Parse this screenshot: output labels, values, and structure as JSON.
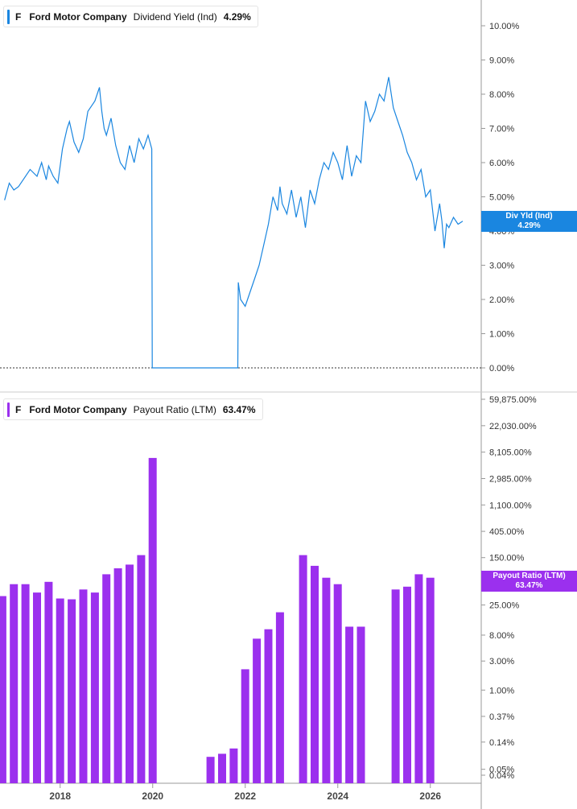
{
  "panels": {
    "top": {
      "ticker": "F",
      "company": "Ford Motor Company",
      "metric": "Dividend Yield (Ind)",
      "value": "4.29%",
      "flag_label": "Div Yld (Ind)",
      "flag_value": "4.29%",
      "color": "#1a86e0"
    },
    "bottom": {
      "ticker": "F",
      "company": "Ford Motor Company",
      "metric": "Payout Ratio (LTM)",
      "value": "63.47%",
      "flag_label": "Payout Ratio (LTM)",
      "flag_value": "63.47%",
      "color": "#9b30ee"
    }
  },
  "chart_data": [
    {
      "type": "line",
      "series": [
        {
          "name": "Dividend Yield (Ind)",
          "color": "#1a86e0",
          "x": [
            2016.8,
            2016.9,
            2017.0,
            2017.1,
            2017.2,
            2017.35,
            2017.5,
            2017.6,
            2017.7,
            2017.75,
            2017.85,
            2017.95,
            2018.05,
            2018.15,
            2018.2,
            2018.3,
            2018.4,
            2018.5,
            2018.6,
            2018.75,
            2018.85,
            2018.9,
            2018.95,
            2019.0,
            2019.1,
            2019.2,
            2019.3,
            2019.4,
            2019.5,
            2019.6,
            2019.7,
            2019.8,
            2019.9,
            2019.98,
            2019.99,
            2021.84,
            2021.85,
            2021.9,
            2022.0,
            2022.1,
            2022.2,
            2022.3,
            2022.4,
            2022.5,
            2022.6,
            2022.7,
            2022.75,
            2022.8,
            2022.9,
            2023.0,
            2023.1,
            2023.2,
            2023.3,
            2023.4,
            2023.5,
            2023.6,
            2023.7,
            2023.8,
            2023.9,
            2024.0,
            2024.1,
            2024.2,
            2024.3,
            2024.4,
            2024.5,
            2024.6,
            2024.7,
            2024.8,
            2024.9,
            2025.0,
            2025.1,
            2025.2,
            2025.3,
            2025.35,
            2025.4,
            2025.5,
            2025.6,
            2025.7,
            2025.8,
            2025.9,
            2026.0,
            2026.1,
            2026.2,
            2026.25,
            2026.3,
            2026.35,
            2026.4,
            2026.5,
            2026.6,
            2026.7
          ],
          "y": [
            4.9,
            5.4,
            5.2,
            5.3,
            5.5,
            5.8,
            5.6,
            6.0,
            5.5,
            5.9,
            5.6,
            5.4,
            6.4,
            7.0,
            7.2,
            6.6,
            6.3,
            6.7,
            7.5,
            7.8,
            8.2,
            7.5,
            7.0,
            6.8,
            7.3,
            6.5,
            6.0,
            5.8,
            6.5,
            6.0,
            6.7,
            6.4,
            6.8,
            6.4,
            0.0,
            0.0,
            2.5,
            2.0,
            1.8,
            2.2,
            2.6,
            3.0,
            3.6,
            4.2,
            5.0,
            4.6,
            5.3,
            4.8,
            4.5,
            5.2,
            4.4,
            5.0,
            4.1,
            5.2,
            4.8,
            5.5,
            6.0,
            5.8,
            6.3,
            6.0,
            5.5,
            6.5,
            5.6,
            6.2,
            6.0,
            7.8,
            7.2,
            7.5,
            8.0,
            7.8,
            8.5,
            7.6,
            7.2,
            7.0,
            6.8,
            6.3,
            6.0,
            5.5,
            5.8,
            5.0,
            5.2,
            4.0,
            4.8,
            4.3,
            3.5,
            4.2,
            4.1,
            4.4,
            4.2,
            4.29
          ]
        }
      ],
      "xlim": [
        2016.7,
        2026.75
      ],
      "ylim": [
        0,
        10.5
      ],
      "yticks": [
        "10.00%",
        "9.00%",
        "8.00%",
        "7.00%",
        "6.00%",
        "5.00%",
        "4.00%",
        "3.00%",
        "2.00%",
        "1.00%",
        "0.00%"
      ],
      "ytick_values": [
        10,
        9,
        8,
        7,
        6,
        5,
        4,
        3,
        2,
        1,
        0
      ],
      "xticks": [
        "2018",
        "2020",
        "2022",
        "2024",
        "2026"
      ],
      "xtick_values": [
        2018,
        2020,
        2022,
        2024,
        2026
      ],
      "grid": false,
      "reference_line": 0
    },
    {
      "type": "bar",
      "yscale": "log",
      "series": [
        {
          "name": "Payout Ratio (LTM)",
          "color": "#9b30ee",
          "x": [
            2016.75,
            2017.0,
            2017.25,
            2017.5,
            2017.75,
            2018.0,
            2018.25,
            2018.5,
            2018.75,
            2019.0,
            2019.25,
            2019.5,
            2019.75,
            2020.0,
            2021.25,
            2021.5,
            2021.75,
            2022.0,
            2022.25,
            2022.5,
            2022.75,
            2023.25,
            2023.5,
            2023.75,
            2024.0,
            2024.25,
            2024.5,
            2025.25,
            2025.5,
            2025.75,
            2026.0
          ],
          "values": [
            35,
            55,
            55,
            40,
            60,
            32,
            31,
            45,
            40,
            80,
            100,
            115,
            165,
            6500,
            0.08,
            0.09,
            0.11,
            2.2,
            7.0,
            10.0,
            19.0,
            165,
            110,
            70,
            55,
            11,
            11,
            45,
            50,
            80,
            70
          ]
        }
      ],
      "ylim": [
        0.04,
        59875
      ],
      "yticks": [
        "59,875.00%",
        "22,030.00%",
        "8,105.00%",
        "2,985.00%",
        "1,100.00%",
        "405.00%",
        "150.00%",
        "25.00%",
        "8.00%",
        "3.00%",
        "1.00%",
        "0.37%",
        "0.14%",
        "0.05%",
        "0.04%"
      ],
      "ytick_values": [
        59875,
        22030,
        8105,
        2985,
        1100,
        405,
        150,
        25,
        8,
        3,
        1,
        0.37,
        0.14,
        0.05,
        0.04
      ],
      "xticks": [
        "2018",
        "2020",
        "2022",
        "2024",
        "2026"
      ],
      "xtick_values": [
        2018,
        2020,
        2022,
        2024,
        2026
      ],
      "grid": false
    }
  ]
}
